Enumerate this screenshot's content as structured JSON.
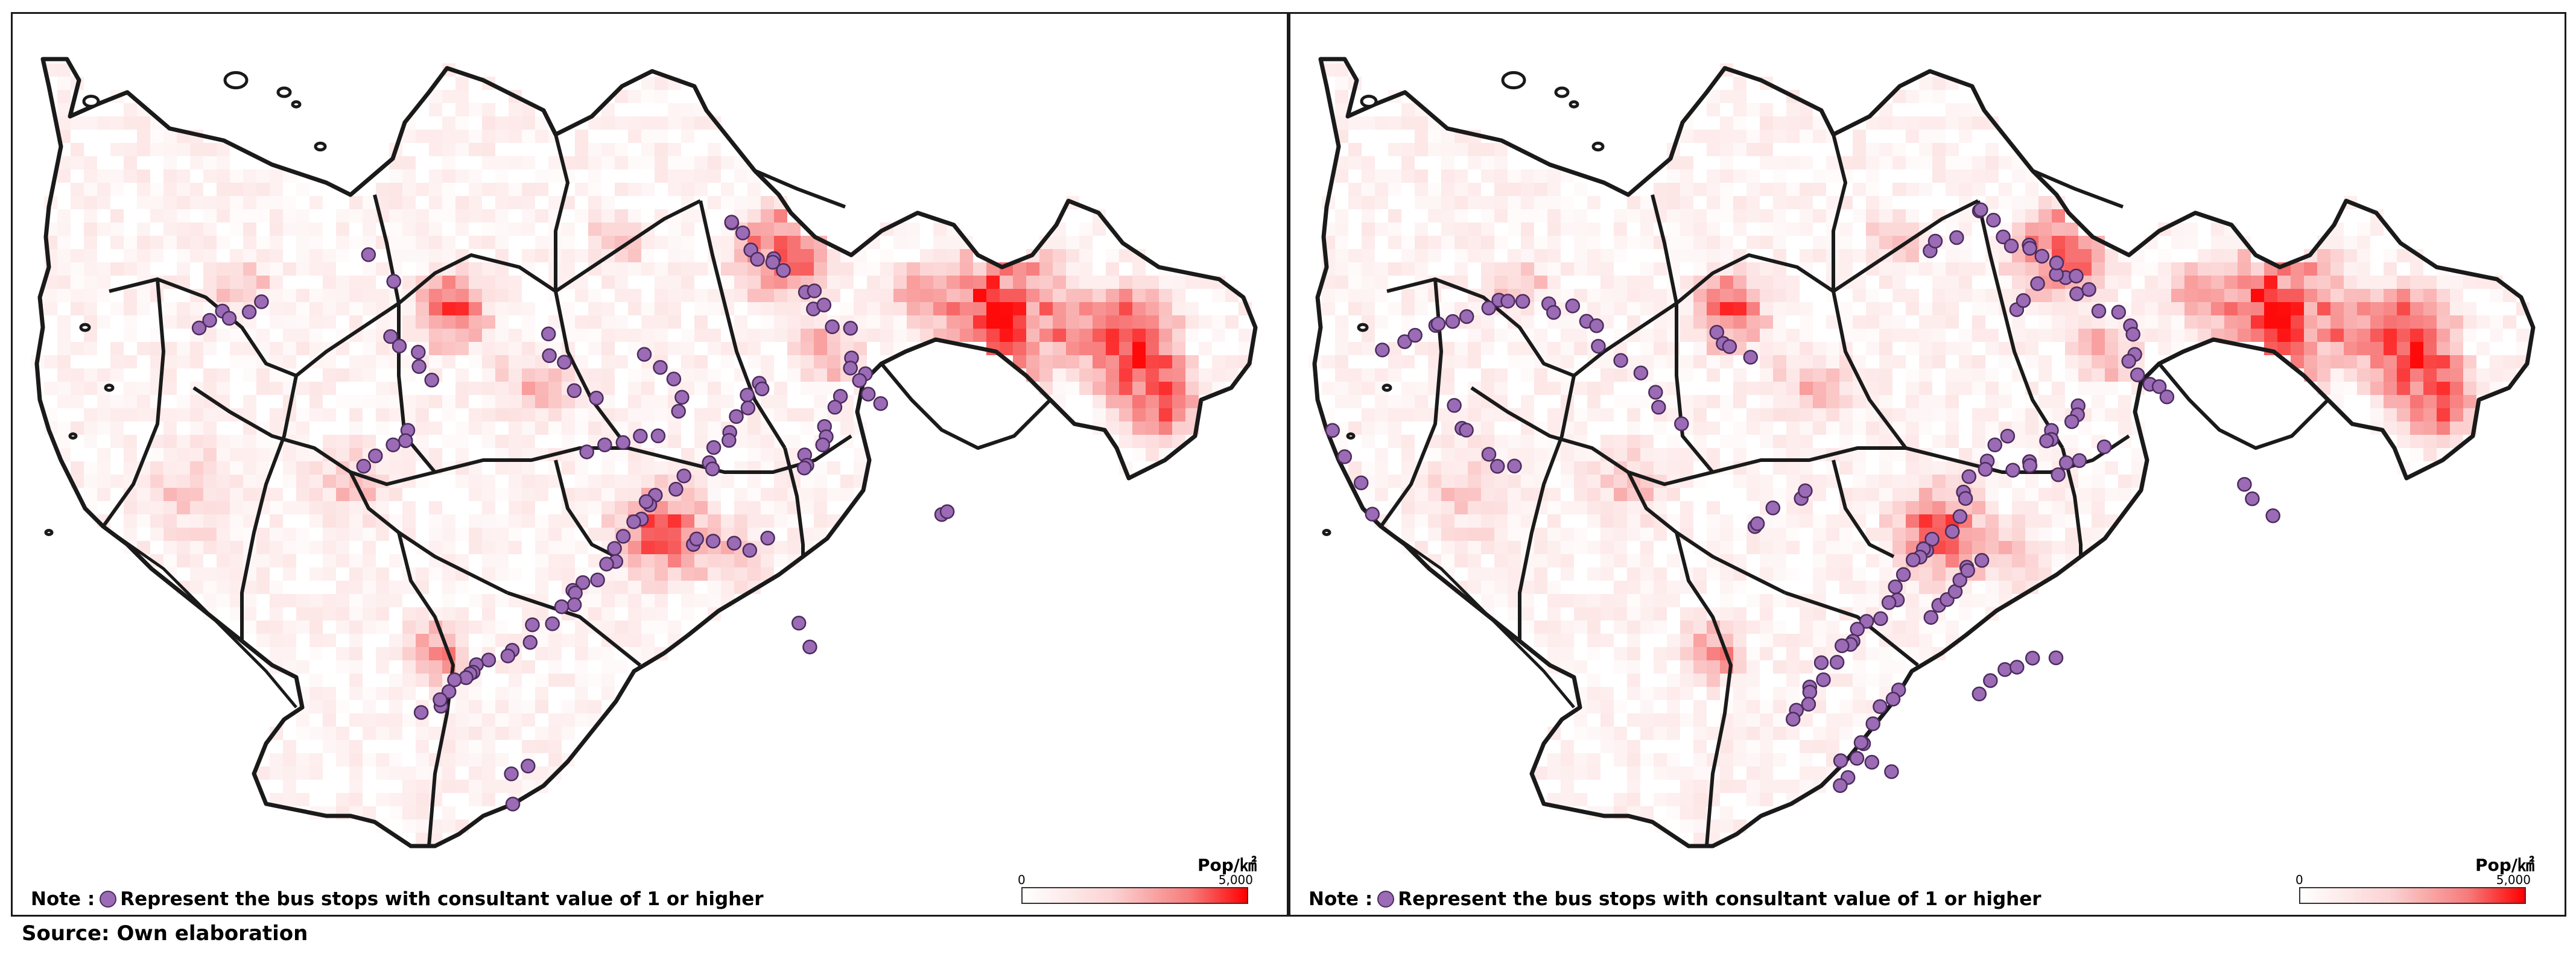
{
  "legend": {
    "unit": "Pop/㎢",
    "min_label": "0",
    "max_label": "5,000",
    "color_min": "#ffffff",
    "color_max": "#ff0000"
  },
  "note": {
    "prefix": "Note :",
    "text": "Represent the bus stops with consultant value of 1 or higher"
  },
  "source": "Source: Own elaboration",
  "colors": {
    "boundary": "#1a1a1a",
    "bus_stop_fill": "#9b6bb5",
    "bus_stop_stroke": "#4b2c5c",
    "density_high": "#ff1a1a",
    "density_low": "#fde6e6"
  },
  "panels": [
    {
      "id": "left-map",
      "marker": "bus-stop-dot"
    },
    {
      "id": "right-map",
      "marker": "bus-stop-dot"
    }
  ]
}
